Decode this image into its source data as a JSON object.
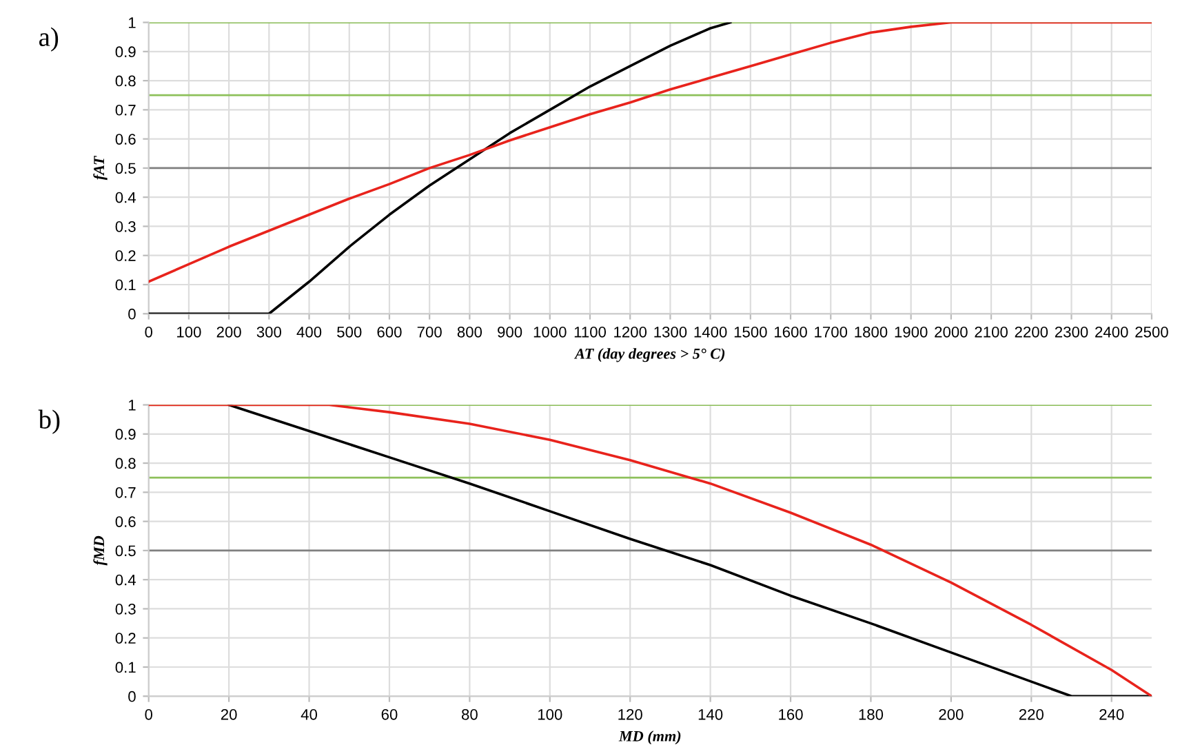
{
  "chart_data": [
    {
      "type": "line",
      "title": "a)",
      "xlabel": "AT (day degrees > 5° C)",
      "ylabel": "fAT",
      "xlim": [
        0,
        2500
      ],
      "xticks": [
        0,
        100,
        200,
        300,
        400,
        500,
        600,
        700,
        800,
        900,
        1000,
        1100,
        1200,
        1300,
        1400,
        1500,
        1600,
        1700,
        1800,
        1900,
        2000,
        2100,
        2200,
        2300,
        2400,
        2500
      ],
      "ylim": [
        0,
        1
      ],
      "yticks": [
        0,
        0.1,
        0.2,
        0.3,
        0.4,
        0.5,
        0.6,
        0.7,
        0.8,
        0.9,
        1
      ],
      "grid": true,
      "marker": "none",
      "line_style": "solid",
      "series": [
        {
          "color": "#000000",
          "x": [
            0,
            300,
            400,
            500,
            600,
            700,
            800,
            900,
            1000,
            1100,
            1200,
            1300,
            1400,
            1450
          ],
          "values": [
            0,
            0,
            0.11,
            0.23,
            0.34,
            0.44,
            0.53,
            0.62,
            0.7,
            0.78,
            0.85,
            0.92,
            0.98,
            1
          ]
        },
        {
          "color": "#e8231c",
          "x": [
            0,
            100,
            200,
            300,
            400,
            500,
            600,
            700,
            800,
            900,
            1000,
            1100,
            1200,
            1300,
            1400,
            1500,
            1600,
            1700,
            1800,
            1900,
            2000,
            2500
          ],
          "values": [
            0.11,
            0.17,
            0.23,
            0.285,
            0.34,
            0.395,
            0.445,
            0.5,
            0.545,
            0.595,
            0.64,
            0.685,
            0.725,
            0.77,
            0.81,
            0.85,
            0.89,
            0.93,
            0.965,
            0.985,
            1,
            1
          ]
        }
      ],
      "ref_lines": [
        {
          "axis": "y",
          "value": 1,
          "color": "#8dc05a"
        },
        {
          "axis": "y",
          "value": 0.75,
          "color": "#8dc05a"
        },
        {
          "axis": "y",
          "value": 0.5,
          "color": "#808080"
        }
      ]
    },
    {
      "type": "line",
      "title": "b)",
      "xlabel": "MD (mm)",
      "ylabel": "fMD",
      "xlim": [
        0,
        250
      ],
      "xticks": [
        0,
        20,
        40,
        60,
        80,
        100,
        120,
        140,
        160,
        180,
        200,
        220,
        240
      ],
      "ylim": [
        0,
        1
      ],
      "yticks": [
        0,
        0.1,
        0.2,
        0.3,
        0.4,
        0.5,
        0.6,
        0.7,
        0.8,
        0.9,
        1
      ],
      "grid": true,
      "marker": "none",
      "line_style": "solid",
      "series": [
        {
          "color": "#000000",
          "x": [
            20,
            40,
            60,
            80,
            100,
            120,
            140,
            160,
            180,
            200,
            220,
            230,
            250
          ],
          "values": [
            1,
            0.91,
            0.82,
            0.73,
            0.635,
            0.54,
            0.45,
            0.345,
            0.25,
            0.15,
            0.05,
            0,
            0
          ]
        },
        {
          "color": "#e8231c",
          "x": [
            0,
            45,
            60,
            80,
            100,
            120,
            140,
            160,
            180,
            200,
            220,
            240,
            250
          ],
          "values": [
            1,
            1,
            0.975,
            0.935,
            0.88,
            0.81,
            0.73,
            0.63,
            0.52,
            0.39,
            0.245,
            0.09,
            0
          ]
        }
      ],
      "ref_lines": [
        {
          "axis": "y",
          "value": 1,
          "color": "#8dc05a"
        },
        {
          "axis": "y",
          "value": 0.75,
          "color": "#8dc05a"
        },
        {
          "axis": "y",
          "value": 0.5,
          "color": "#808080"
        }
      ]
    }
  ]
}
